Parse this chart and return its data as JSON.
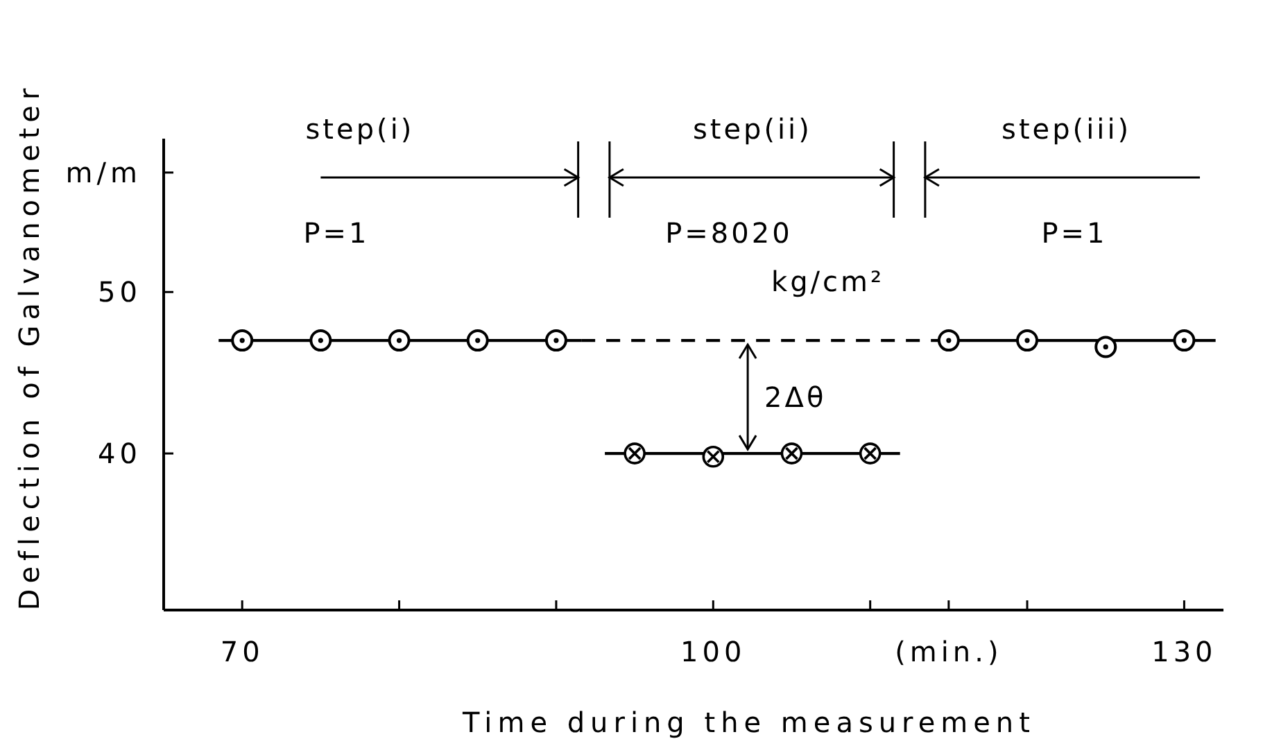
{
  "chart_data": {
    "type": "scatter",
    "xlabel": "Time during the measurement",
    "ylabel": "Deflection of Galvanometer",
    "xlim": [
      65,
      132.5
    ],
    "xticks": [
      70,
      {
        "value": 80,
        "label": null
      },
      {
        "value": 90,
        "label": null
      },
      100,
      {
        "value": 110,
        "label": null
      },
      {
        "value": 115,
        "label": "(min.)"
      },
      {
        "value": 120,
        "label": null
      },
      130
    ],
    "ylim": [
      30.3,
      59.5
    ],
    "yticks": [
      40,
      50,
      {
        "value": 57.4,
        "label": "m/m"
      }
    ],
    "grid": false,
    "series": [
      {
        "type": "line",
        "color": "#000000",
        "x": [
          68.5,
          91.6
        ],
        "values": [
          47,
          47
        ],
        "line_style": "solid"
      },
      {
        "type": "line",
        "color": "#000000",
        "x": [
          91.6,
          114.6
        ],
        "values": [
          47,
          47
        ],
        "line_style": "dashed"
      },
      {
        "type": "line",
        "color": "#000000",
        "x": [
          114.6,
          132
        ],
        "values": [
          47,
          47
        ],
        "line_style": "solid"
      },
      {
        "type": "line",
        "color": "#000000",
        "x": [
          93.1,
          111.9
        ],
        "values": [
          40,
          40
        ],
        "line_style": "solid"
      },
      {
        "color": "#000000",
        "x": [
          70,
          75,
          80,
          85,
          90
        ],
        "values": [
          47,
          47,
          47,
          47,
          47
        ],
        "marker": "circle"
      },
      {
        "color": "#000000",
        "x": [
          95,
          100,
          105,
          110
        ],
        "values": [
          40,
          39.8,
          40,
          40
        ],
        "marker": "cross"
      },
      {
        "color": "#000000",
        "x": [
          115,
          120,
          125,
          130
        ],
        "values": [
          47,
          47,
          46.6,
          47
        ],
        "marker": "circle"
      }
    ],
    "annotations": [
      "step(i)",
      "step(ii)",
      "step(iii)",
      "P=1",
      "P=8020",
      "kg/cm²",
      "P=1",
      {
        "text": "2Δθ",
        "x": 102.2,
        "y": 47
      }
    ]
  }
}
